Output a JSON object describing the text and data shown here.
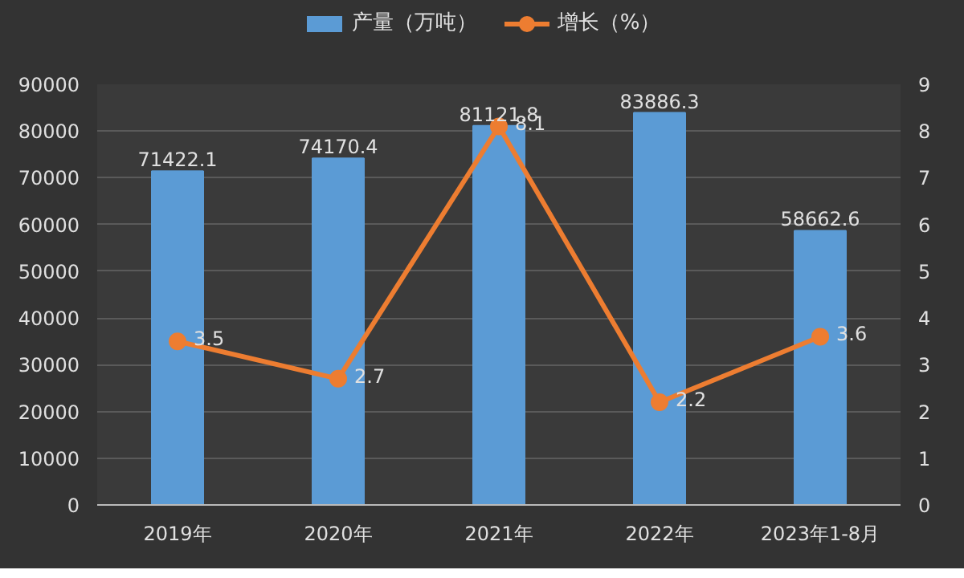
{
  "chart_data": {
    "type": "bar",
    "categories": [
      "2019年",
      "2020年",
      "2021年",
      "2022年",
      "2023年1-8月"
    ],
    "series": [
      {
        "name": "产量（万吨）",
        "color": "#5b9bd5",
        "values": [
          71422.1,
          74170.4,
          81121.8,
          83886.3,
          58662.6
        ]
      },
      {
        "name": "增长（%）",
        "type": "line",
        "axis": "y2",
        "color": "#ed7d31",
        "values": [
          3.5,
          2.7,
          8.1,
          2.2,
          3.6
        ]
      }
    ],
    "ylim": [
      0,
      90000
    ],
    "yticks": [
      0,
      10000,
      20000,
      30000,
      40000,
      50000,
      60000,
      70000,
      80000,
      90000
    ],
    "y2lim": [
      0,
      9
    ],
    "y2ticks": [
      0,
      1,
      2,
      3,
      4,
      5,
      6,
      7,
      8,
      9
    ],
    "grid": "y",
    "legend": "top",
    "marker": "circle",
    "data_labels": true
  }
}
